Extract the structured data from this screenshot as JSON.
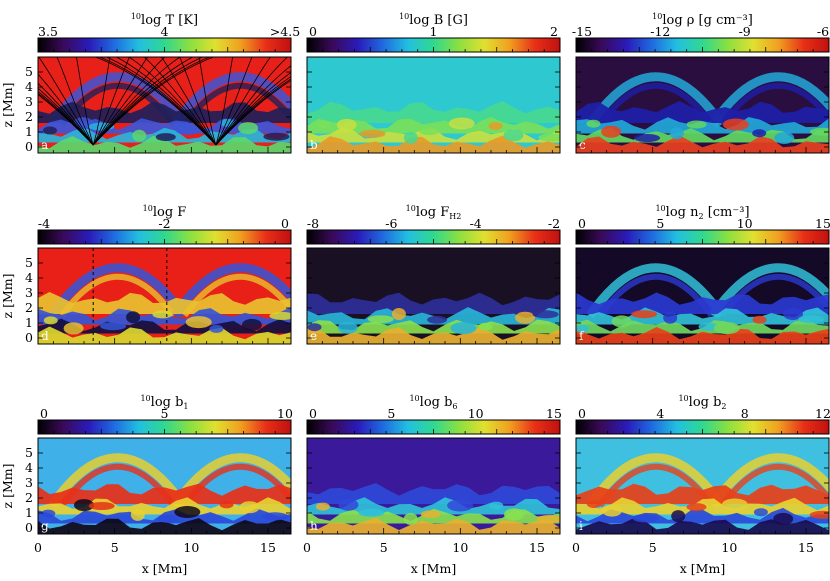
{
  "figure": {
    "panels": [
      {
        "id": "a",
        "letter": "a",
        "title_prefix": "10",
        "title": "log T [K]",
        "colorbar_ticks": [
          "3.5",
          "4",
          ">4.5"
        ],
        "base_color": "#e8201a",
        "lower_colors": [
          "#20205a",
          "#3c56d8",
          "#28b4dc",
          "#5ad86c"
        ],
        "has_field_lines": true
      },
      {
        "id": "b",
        "letter": "b",
        "title_prefix": "10",
        "title": "log B [G]",
        "colorbar_ticks": [
          "0",
          "1",
          "2"
        ],
        "base_color": "#2ec8d0",
        "lower_colors": [
          "#48d890",
          "#78e05a",
          "#c8e040",
          "#e89a28"
        ],
        "has_field_lines": false
      },
      {
        "id": "c",
        "letter": "c",
        "title_prefix": "10",
        "title": "log ρ [g cm⁻³]",
        "colorbar_ticks": [
          "-15",
          "-12",
          "-9",
          "-6"
        ],
        "base_color": "#2a0e40",
        "lower_colors": [
          "#1e1ea8",
          "#22a8d8",
          "#62d860",
          "#e84020"
        ],
        "has_field_lines": false
      },
      {
        "id": "d",
        "letter": "d",
        "title_prefix": "10",
        "title": "log F",
        "colorbar_ticks": [
          "-4",
          "-2",
          "0"
        ],
        "base_color": "#e82018",
        "lower_colors": [
          "#e8c030",
          "#3456d8",
          "#101040",
          "#d8d830"
        ],
        "has_field_lines": false
      },
      {
        "id": "e",
        "letter": "e",
        "title_prefix": "10",
        "title": "log F",
        "title_sub": "H2",
        "colorbar_ticks": [
          "-8",
          "-6",
          "-4",
          "-2"
        ],
        "base_color": "#1a1024",
        "lower_colors": [
          "#2e2e9a",
          "#28b4d8",
          "#88e050",
          "#e8b030"
        ],
        "has_field_lines": false
      },
      {
        "id": "f",
        "letter": "f",
        "title_prefix": "10",
        "title": "log n",
        "title_sub": "2",
        "title_suffix": " [cm⁻³]",
        "colorbar_ticks": [
          "0",
          "5",
          "10",
          "15"
        ],
        "base_color": "#140a28",
        "lower_colors": [
          "#2a3ad0",
          "#30c0d8",
          "#70d860",
          "#e84018"
        ],
        "has_field_lines": false
      },
      {
        "id": "g",
        "letter": "g",
        "title_prefix": "10",
        "title": "log b",
        "title_sub": "1",
        "colorbar_ticks": [
          "0",
          "5",
          "10"
        ],
        "base_color": "#40b0e8",
        "lower_colors": [
          "#e83018",
          "#e8d030",
          "#2a4ad8",
          "#100818"
        ],
        "has_field_lines": false
      },
      {
        "id": "h",
        "letter": "h",
        "title_prefix": "10",
        "title": "log b",
        "title_sub": "6",
        "colorbar_ticks": [
          "0",
          "5",
          "10",
          "15"
        ],
        "base_color": "#3a1a9a",
        "lower_colors": [
          "#3048d8",
          "#30c0d8",
          "#88e050",
          "#e8b030"
        ],
        "has_field_lines": false
      },
      {
        "id": "i",
        "letter": "i",
        "title_prefix": "10",
        "title": "log b",
        "title_sub": "2",
        "colorbar_ticks": [
          "0",
          "4",
          "8",
          "12"
        ],
        "base_color": "#40c0e0",
        "lower_colors": [
          "#e84018",
          "#e8d030",
          "#2a4ad8",
          "#1a0c50"
        ],
        "has_field_lines": false
      }
    ],
    "y_axis": {
      "label": "z [Mm]",
      "ticks": [
        "0",
        "1",
        "2",
        "3",
        "4",
        "5"
      ]
    },
    "x_axis": {
      "label": "x [Mm]",
      "ticks": [
        "0",
        "5",
        "10",
        "15"
      ]
    },
    "colormap": [
      "#000000",
      "#3a0a5a",
      "#2a1ab8",
      "#1f6ae0",
      "#22c0e0",
      "#30d890",
      "#8ae040",
      "#e0e030",
      "#f0a020",
      "#e83018",
      "#c01010"
    ]
  }
}
